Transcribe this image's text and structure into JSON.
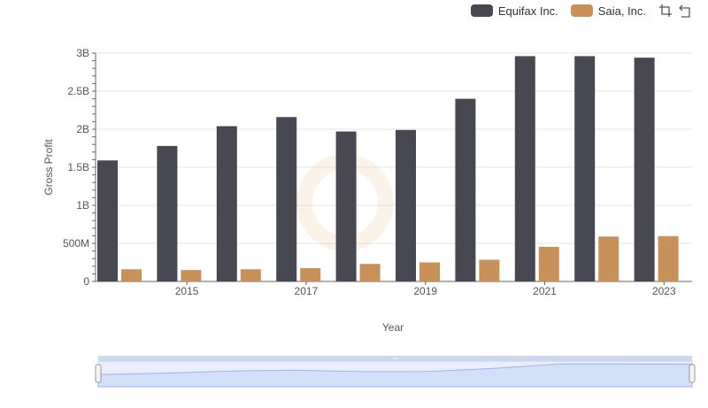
{
  "legend": {
    "series": [
      {
        "name": "Equifax Inc.",
        "color": "#484853"
      },
      {
        "name": "Saia, Inc.",
        "color": "#c9915a"
      }
    ],
    "tools": [
      "zoom-box-icon",
      "reset-zoom-icon"
    ]
  },
  "chart_data": {
    "type": "bar",
    "xlabel": "Year",
    "ylabel": "Gross Profit",
    "ylim": [
      0,
      3000000000
    ],
    "y_ticks": [
      {
        "value": 0,
        "label": "0"
      },
      {
        "value": 500000000,
        "label": "500M"
      },
      {
        "value": 1000000000,
        "label": "1B"
      },
      {
        "value": 1500000000,
        "label": "1.5B"
      },
      {
        "value": 2000000000,
        "label": "2B"
      },
      {
        "value": 2500000000,
        "label": "2.5B"
      },
      {
        "value": 3000000000,
        "label": "3B"
      }
    ],
    "x_tick_labels": [
      "2015",
      "2017",
      "2019",
      "2021",
      "2023"
    ],
    "grid": true,
    "legend_position": "top-right",
    "categories": [
      "2014",
      "2015",
      "2016",
      "2017",
      "2018",
      "2019",
      "2020",
      "2021",
      "2022",
      "2023"
    ],
    "series": [
      {
        "name": "Equifax Inc.",
        "color": "#484853",
        "values": [
          1590000000,
          1780000000,
          2040000000,
          2160000000,
          1970000000,
          1990000000,
          2400000000,
          2960000000,
          2960000000,
          2940000000
        ]
      },
      {
        "name": "Saia, Inc.",
        "color": "#c9915a",
        "values": [
          160000000,
          150000000,
          160000000,
          175000000,
          230000000,
          250000000,
          285000000,
          455000000,
          590000000,
          595000000
        ]
      }
    ]
  }
}
